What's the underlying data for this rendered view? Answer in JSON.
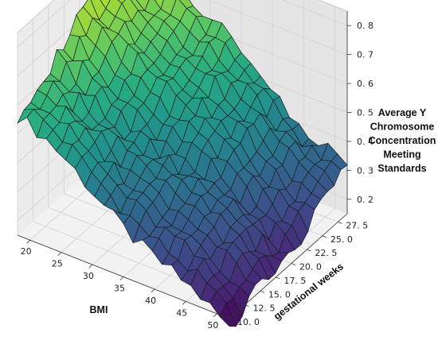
{
  "chart_data": {
    "type": "surface3d",
    "title": "",
    "xlabel": "BMI",
    "ylabel": "gestational weeks",
    "zlabel_lines": [
      "Average Y",
      "Chromosome",
      "Concentration",
      "Meeting",
      "Standards"
    ],
    "colormap": "viridis",
    "xlim": [
      18,
      52
    ],
    "ylim": [
      10,
      29
    ],
    "zlim": [
      0.15,
      0.85
    ],
    "x_ticks": [
      20,
      25,
      30,
      35,
      40,
      45,
      50
    ],
    "y_ticks": [
      10.0,
      12.5,
      15.0,
      17.5,
      20.0,
      22.5,
      25.0,
      27.5
    ],
    "y_tick_labels": [
      "10. 0",
      "12. 5",
      "15. 0",
      "17. 5",
      "20. 0",
      "22. 5",
      "25. 0",
      "27. 5"
    ],
    "z_ticks": [
      0.2,
      0.3,
      0.4,
      0.5,
      0.6,
      0.7,
      0.8
    ],
    "z_tick_labels": [
      "0. 2",
      "0. 3",
      "0. 4",
      "0. 5",
      "0. 6",
      "0. 7",
      "0. 8"
    ],
    "grid": true,
    "surface": {
      "x_range": [
        18,
        52
      ],
      "y_range": [
        10,
        29
      ],
      "nx": 22,
      "ny": 18,
      "z_corners": {
        "bmi18_week10": 0.55,
        "bmi18_week29": 0.82,
        "bmi52_week10": 0.12,
        "bmi52_week29": 0.31
      }
    }
  }
}
